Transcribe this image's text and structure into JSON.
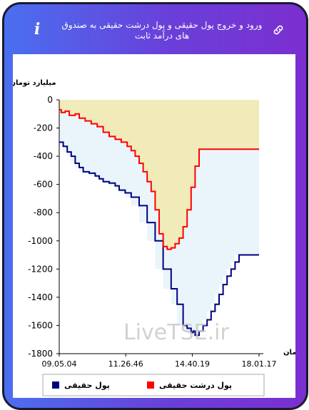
{
  "header": {
    "title": "ورود و خروج پول حقیقی و پول درشت حقیقی به صندوق های درآمد ثابت",
    "info_icon": "info-icon",
    "link_icon": "link-icon"
  },
  "watermark": "LiveTSE.ir",
  "colors": {
    "real_money": "#00007f",
    "big_real_money": "#ff0000",
    "fill_upper": "#f0ebb8",
    "fill_lower": "#eaf5fb",
    "header_gradient_start": "#4a6ff0",
    "header_gradient_end": "#7b2fd0"
  },
  "chart_data": {
    "type": "area",
    "ylabel": "میلیارد تومان",
    "xlabel": "زمان",
    "ylim": [
      -1800,
      0
    ],
    "yticks": [
      0,
      -200,
      -400,
      -600,
      -800,
      -1000,
      -1200,
      -1400,
      -1600,
      -1800
    ],
    "xticks": [
      "09.05.04",
      "11.26.46",
      "14.40.19",
      "18.01.17"
    ],
    "legend_position": "bottom",
    "series": [
      {
        "name": "پول حقیقی",
        "color": "#00007f",
        "x": [
          0,
          2,
          4,
          6,
          8,
          10,
          12,
          15,
          18,
          20,
          22,
          25,
          28,
          30,
          33,
          36,
          40,
          44,
          48,
          52,
          56,
          59,
          62,
          64,
          66,
          67,
          68,
          70,
          72,
          74,
          76,
          78,
          80,
          82,
          84,
          86,
          88,
          90,
          92,
          100
        ],
        "values": [
          -300,
          -330,
          -370,
          -400,
          -450,
          -480,
          -510,
          -520,
          -540,
          -560,
          -580,
          -590,
          -610,
          -640,
          -660,
          -690,
          -750,
          -870,
          -1000,
          -1200,
          -1340,
          -1450,
          -1600,
          -1620,
          -1650,
          -1640,
          -1670,
          -1640,
          -1600,
          -1560,
          -1500,
          -1450,
          -1380,
          -1310,
          -1250,
          -1200,
          -1150,
          -1100,
          -1100,
          -1100
        ]
      },
      {
        "name": "پول درشت حقیقی",
        "color": "#ff0000",
        "x": [
          0,
          1,
          3,
          5,
          8,
          10,
          13,
          16,
          19,
          22,
          25,
          28,
          31,
          34,
          36,
          38,
          40,
          42,
          44,
          46,
          48,
          50,
          52,
          54,
          56,
          58,
          60,
          62,
          64,
          66,
          68,
          70,
          100
        ],
        "values": [
          -70,
          -90,
          -80,
          -110,
          -100,
          -130,
          -150,
          -170,
          -190,
          -230,
          -260,
          -280,
          -300,
          -330,
          -360,
          -400,
          -450,
          -510,
          -580,
          -650,
          -780,
          -950,
          -1040,
          -1060,
          -1050,
          -1020,
          -980,
          -900,
          -780,
          -620,
          -470,
          -350,
          -350
        ]
      }
    ]
  }
}
